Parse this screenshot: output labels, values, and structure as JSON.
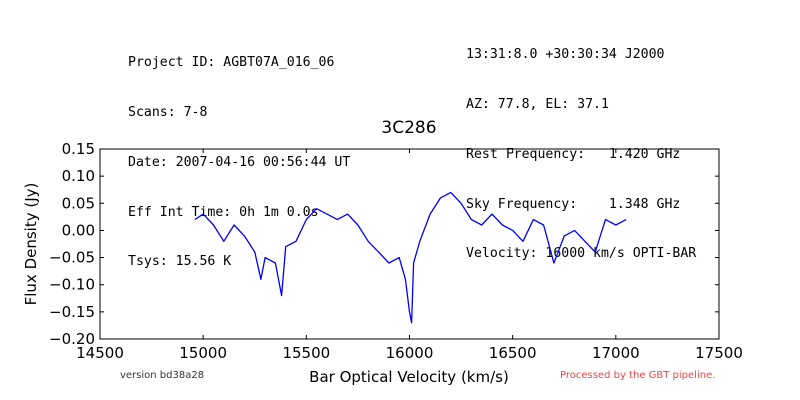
{
  "header_left": [
    "Project ID: AGBT07A_016_06",
    "Scans: 7-8",
    "Date: 2007-04-16 00:56:44 UT",
    "Eff Int Time: 0h 1m 0.0s",
    "Tsys: 15.56 K"
  ],
  "header_right": [
    "13:31:8.0 +30:30:34 J2000",
    "AZ: 77.8, EL: 37.1",
    "Rest Frequency:   1.420 GHz",
    "Sky Frequency:    1.348 GHz",
    "Velocity: 16000 km/s OPTI-BAR"
  ],
  "footer": {
    "version": "version bd38a28",
    "pipeline": "Processed by the GBT pipeline."
  },
  "colors": {
    "line": "#0000ff",
    "pipeline_text": "#ee4444",
    "version_text": "#333333"
  },
  "chart_data": {
    "type": "line",
    "title": "3C286",
    "xlabel": "Bar Optical Velocity (km/s)",
    "ylabel": "Flux Density (Jy)",
    "xlim": [
      14500,
      17500
    ],
    "ylim": [
      -0.2,
      0.15
    ],
    "xticks": [
      14500,
      15000,
      15500,
      16000,
      16500,
      17000,
      17500
    ],
    "xtick_labels": [
      "14500",
      "15000",
      "15500",
      "16000",
      "16500",
      "17000",
      "17500"
    ],
    "yticks": [
      0.15,
      0.1,
      0.05,
      0.0,
      -0.05,
      -0.1,
      -0.15,
      -0.2
    ],
    "ytick_labels": [
      "0.15",
      "0.10",
      "0.05",
      "0.00",
      "−0.05",
      "−0.10",
      "−0.15",
      "−0.20"
    ],
    "grid": false,
    "series": [
      {
        "x": [
          14960,
          15000,
          15050,
          15100,
          15150,
          15200,
          15250,
          15280,
          15300,
          15350,
          15380,
          15400,
          15450,
          15500,
          15550,
          15600,
          15650,
          15700,
          15750,
          15800,
          15850,
          15900,
          15950,
          15980,
          16000,
          16010,
          16020,
          16050,
          16100,
          16150,
          16200,
          16250,
          16300,
          16350,
          16400,
          16450,
          16500,
          16550,
          16600,
          16650,
          16700,
          16750,
          16800,
          16850,
          16900,
          16950,
          17000,
          17050
        ],
        "y": [
          0.02,
          0.03,
          0.01,
          -0.02,
          0.01,
          -0.01,
          -0.04,
          -0.09,
          -0.05,
          -0.06,
          -0.12,
          -0.03,
          -0.02,
          0.02,
          0.04,
          0.03,
          0.02,
          0.03,
          0.01,
          -0.02,
          -0.04,
          -0.06,
          -0.05,
          -0.09,
          -0.15,
          -0.17,
          -0.06,
          -0.02,
          0.03,
          0.06,
          0.07,
          0.05,
          0.02,
          0.01,
          0.03,
          0.01,
          0.0,
          -0.02,
          0.02,
          0.01,
          -0.06,
          -0.01,
          0.0,
          -0.02,
          -0.04,
          0.02,
          0.01,
          0.02
        ]
      }
    ]
  }
}
